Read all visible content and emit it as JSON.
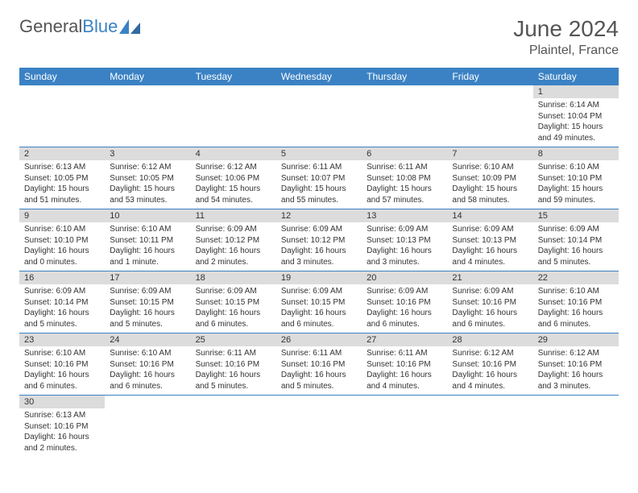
{
  "brand": {
    "part1": "General",
    "part2": "Blue"
  },
  "title": "June 2024",
  "location": "Plaintel, France",
  "colors": {
    "header_bg": "#3b82c4",
    "daynum_bg": "#dcdcdc",
    "row_border": "#3b82c4",
    "text": "#333333",
    "title_text": "#555555"
  },
  "weekdays": [
    "Sunday",
    "Monday",
    "Tuesday",
    "Wednesday",
    "Thursday",
    "Friday",
    "Saturday"
  ],
  "days": {
    "1": {
      "sunrise": "Sunrise: 6:14 AM",
      "sunset": "Sunset: 10:04 PM",
      "daylight": "Daylight: 15 hours and 49 minutes."
    },
    "2": {
      "sunrise": "Sunrise: 6:13 AM",
      "sunset": "Sunset: 10:05 PM",
      "daylight": "Daylight: 15 hours and 51 minutes."
    },
    "3": {
      "sunrise": "Sunrise: 6:12 AM",
      "sunset": "Sunset: 10:05 PM",
      "daylight": "Daylight: 15 hours and 53 minutes."
    },
    "4": {
      "sunrise": "Sunrise: 6:12 AM",
      "sunset": "Sunset: 10:06 PM",
      "daylight": "Daylight: 15 hours and 54 minutes."
    },
    "5": {
      "sunrise": "Sunrise: 6:11 AM",
      "sunset": "Sunset: 10:07 PM",
      "daylight": "Daylight: 15 hours and 55 minutes."
    },
    "6": {
      "sunrise": "Sunrise: 6:11 AM",
      "sunset": "Sunset: 10:08 PM",
      "daylight": "Daylight: 15 hours and 57 minutes."
    },
    "7": {
      "sunrise": "Sunrise: 6:10 AM",
      "sunset": "Sunset: 10:09 PM",
      "daylight": "Daylight: 15 hours and 58 minutes."
    },
    "8": {
      "sunrise": "Sunrise: 6:10 AM",
      "sunset": "Sunset: 10:10 PM",
      "daylight": "Daylight: 15 hours and 59 minutes."
    },
    "9": {
      "sunrise": "Sunrise: 6:10 AM",
      "sunset": "Sunset: 10:10 PM",
      "daylight": "Daylight: 16 hours and 0 minutes."
    },
    "10": {
      "sunrise": "Sunrise: 6:10 AM",
      "sunset": "Sunset: 10:11 PM",
      "daylight": "Daylight: 16 hours and 1 minute."
    },
    "11": {
      "sunrise": "Sunrise: 6:09 AM",
      "sunset": "Sunset: 10:12 PM",
      "daylight": "Daylight: 16 hours and 2 minutes."
    },
    "12": {
      "sunrise": "Sunrise: 6:09 AM",
      "sunset": "Sunset: 10:12 PM",
      "daylight": "Daylight: 16 hours and 3 minutes."
    },
    "13": {
      "sunrise": "Sunrise: 6:09 AM",
      "sunset": "Sunset: 10:13 PM",
      "daylight": "Daylight: 16 hours and 3 minutes."
    },
    "14": {
      "sunrise": "Sunrise: 6:09 AM",
      "sunset": "Sunset: 10:13 PM",
      "daylight": "Daylight: 16 hours and 4 minutes."
    },
    "15": {
      "sunrise": "Sunrise: 6:09 AM",
      "sunset": "Sunset: 10:14 PM",
      "daylight": "Daylight: 16 hours and 5 minutes."
    },
    "16": {
      "sunrise": "Sunrise: 6:09 AM",
      "sunset": "Sunset: 10:14 PM",
      "daylight": "Daylight: 16 hours and 5 minutes."
    },
    "17": {
      "sunrise": "Sunrise: 6:09 AM",
      "sunset": "Sunset: 10:15 PM",
      "daylight": "Daylight: 16 hours and 5 minutes."
    },
    "18": {
      "sunrise": "Sunrise: 6:09 AM",
      "sunset": "Sunset: 10:15 PM",
      "daylight": "Daylight: 16 hours and 6 minutes."
    },
    "19": {
      "sunrise": "Sunrise: 6:09 AM",
      "sunset": "Sunset: 10:15 PM",
      "daylight": "Daylight: 16 hours and 6 minutes."
    },
    "20": {
      "sunrise": "Sunrise: 6:09 AM",
      "sunset": "Sunset: 10:16 PM",
      "daylight": "Daylight: 16 hours and 6 minutes."
    },
    "21": {
      "sunrise": "Sunrise: 6:09 AM",
      "sunset": "Sunset: 10:16 PM",
      "daylight": "Daylight: 16 hours and 6 minutes."
    },
    "22": {
      "sunrise": "Sunrise: 6:10 AM",
      "sunset": "Sunset: 10:16 PM",
      "daylight": "Daylight: 16 hours and 6 minutes."
    },
    "23": {
      "sunrise": "Sunrise: 6:10 AM",
      "sunset": "Sunset: 10:16 PM",
      "daylight": "Daylight: 16 hours and 6 minutes."
    },
    "24": {
      "sunrise": "Sunrise: 6:10 AM",
      "sunset": "Sunset: 10:16 PM",
      "daylight": "Daylight: 16 hours and 6 minutes."
    },
    "25": {
      "sunrise": "Sunrise: 6:11 AM",
      "sunset": "Sunset: 10:16 PM",
      "daylight": "Daylight: 16 hours and 5 minutes."
    },
    "26": {
      "sunrise": "Sunrise: 6:11 AM",
      "sunset": "Sunset: 10:16 PM",
      "daylight": "Daylight: 16 hours and 5 minutes."
    },
    "27": {
      "sunrise": "Sunrise: 6:11 AM",
      "sunset": "Sunset: 10:16 PM",
      "daylight": "Daylight: 16 hours and 4 minutes."
    },
    "28": {
      "sunrise": "Sunrise: 6:12 AM",
      "sunset": "Sunset: 10:16 PM",
      "daylight": "Daylight: 16 hours and 4 minutes."
    },
    "29": {
      "sunrise": "Sunrise: 6:12 AM",
      "sunset": "Sunset: 10:16 PM",
      "daylight": "Daylight: 16 hours and 3 minutes."
    },
    "30": {
      "sunrise": "Sunrise: 6:13 AM",
      "sunset": "Sunset: 10:16 PM",
      "daylight": "Daylight: 16 hours and 2 minutes."
    }
  },
  "grid": [
    [
      null,
      null,
      null,
      null,
      null,
      null,
      "1"
    ],
    [
      "2",
      "3",
      "4",
      "5",
      "6",
      "7",
      "8"
    ],
    [
      "9",
      "10",
      "11",
      "12",
      "13",
      "14",
      "15"
    ],
    [
      "16",
      "17",
      "18",
      "19",
      "20",
      "21",
      "22"
    ],
    [
      "23",
      "24",
      "25",
      "26",
      "27",
      "28",
      "29"
    ],
    [
      "30",
      null,
      null,
      null,
      null,
      null,
      null
    ]
  ]
}
